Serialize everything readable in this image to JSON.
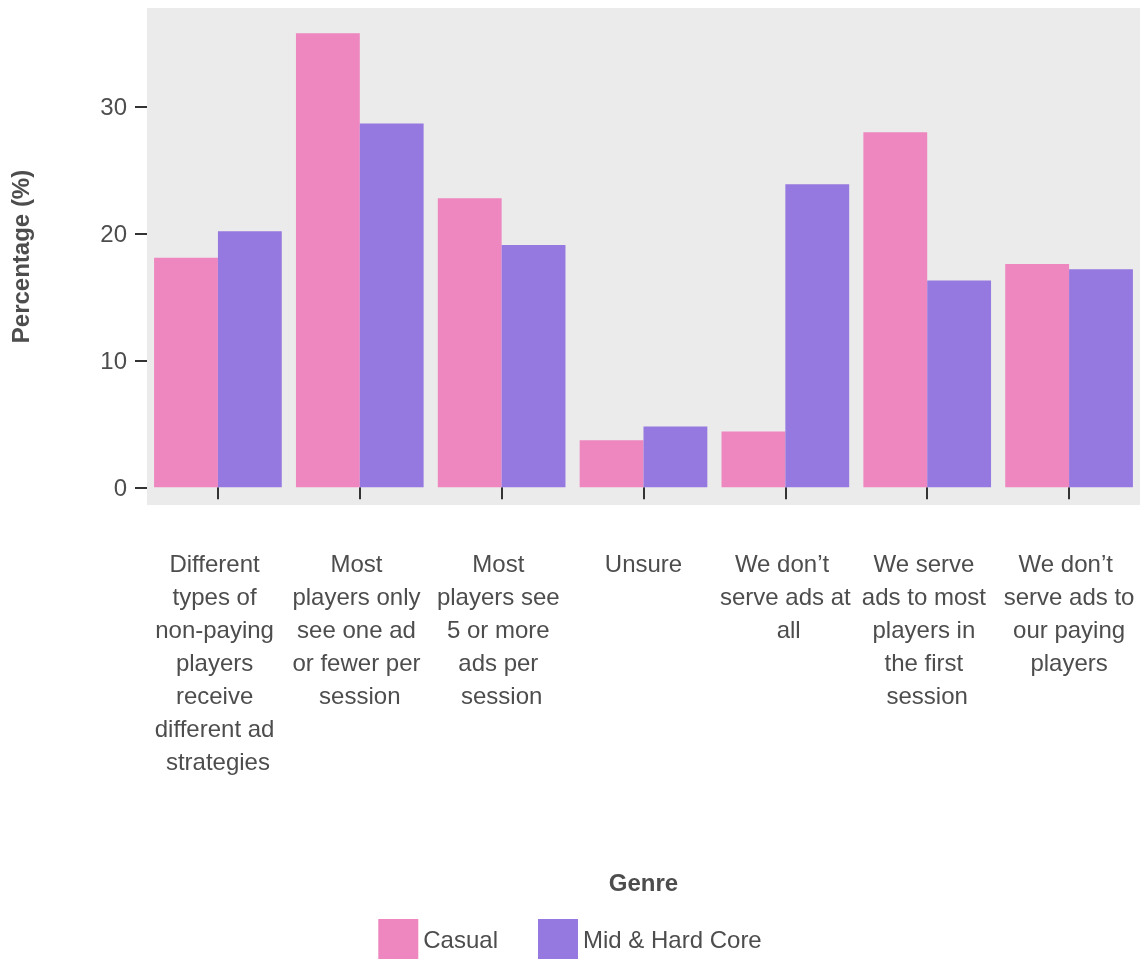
{
  "chart_data": {
    "type": "bar",
    "xlabel": "Genre",
    "ylabel": "Percentage (%)",
    "categories": [
      "Different types of non-paying players receive different ad strategies",
      "Most players only see one ad or fewer per session",
      "Most players see 5 or more ads per session",
      "Unsure",
      "We don’t serve ads at all",
      "We serve ads to most players in the first session",
      "We don’t serve ads to our paying players"
    ],
    "series": [
      {
        "name": "Casual",
        "color": "#ee86bf",
        "values": [
          18.1,
          35.8,
          22.8,
          3.7,
          4.4,
          28.0,
          17.6
        ]
      },
      {
        "name": "Mid & Hard Core",
        "color": "#9679e0",
        "values": [
          20.2,
          28.7,
          19.1,
          4.8,
          23.9,
          16.3,
          17.2
        ]
      }
    ],
    "ylim": [
      -1.4,
      37.8
    ],
    "yticks": [
      0,
      10,
      20,
      30
    ],
    "grid": false,
    "legend": "bottom"
  }
}
